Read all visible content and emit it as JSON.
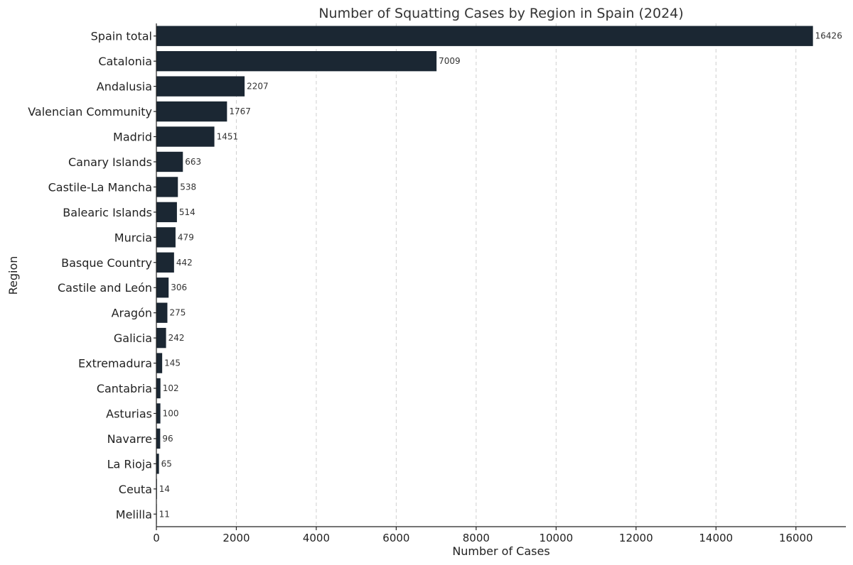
{
  "chart_data": {
    "type": "bar",
    "orientation": "horizontal",
    "title": "Number of Squatting Cases by Region in Spain (2024)",
    "xlabel": "Number of Cases",
    "ylabel": "Region",
    "categories": [
      "Spain total",
      "Catalonia",
      "Andalusia",
      "Valencian Community",
      "Madrid",
      "Canary Islands",
      "Castile-La Mancha",
      "Balearic Islands",
      "Murcia",
      "Basque Country",
      "Castile and León",
      "Aragón",
      "Galicia",
      "Extremadura",
      "Cantabria",
      "Asturias",
      "Navarre",
      "La Rioja",
      "Ceuta",
      "Melilla"
    ],
    "values": [
      16426,
      7009,
      2207,
      1767,
      1451,
      663,
      538,
      514,
      479,
      442,
      306,
      275,
      242,
      145,
      102,
      100,
      96,
      65,
      14,
      11
    ],
    "data_labels": [
      "16426",
      "7009",
      "2207",
      "1767",
      "1451",
      "663",
      "538",
      "514",
      "479",
      "442",
      "306",
      "275",
      "242",
      "145",
      "102",
      "100",
      "96",
      "65",
      "14",
      "11"
    ],
    "xlim": [
      0,
      17250
    ],
    "xticks": [
      0,
      2000,
      4000,
      6000,
      8000,
      10000,
      12000,
      14000,
      16000
    ],
    "xtick_labels": [
      "0",
      "2000",
      "4000",
      "6000",
      "8000",
      "10000",
      "12000",
      "14000",
      "16000"
    ],
    "grid": "x-axis dashed",
    "bar_color": "#1b2733"
  }
}
